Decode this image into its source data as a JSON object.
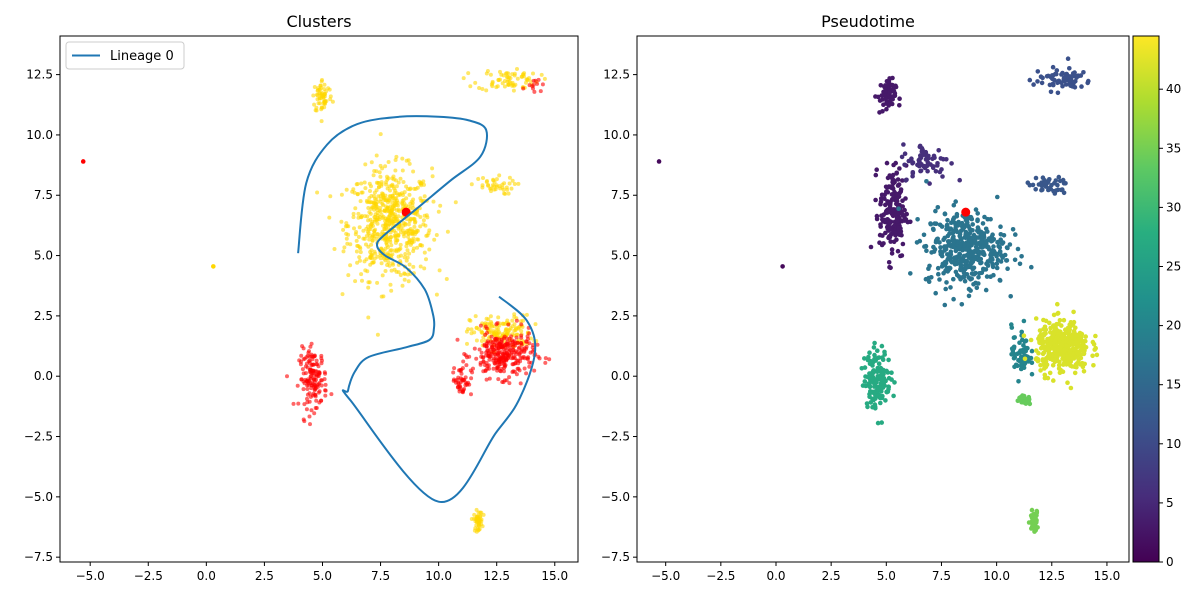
{
  "chart_data": [
    {
      "type": "scatter",
      "title": "Clusters",
      "xlabel": "",
      "ylabel": "",
      "xlim": [
        -6.3,
        16.0
      ],
      "ylim": [
        -7.7,
        14.1
      ],
      "xticks": [
        -5.0,
        -2.5,
        0.0,
        2.5,
        5.0,
        7.5,
        10.0,
        12.5,
        15.0
      ],
      "yticks": [
        -7.5,
        -5.0,
        -2.5,
        0.0,
        2.5,
        5.0,
        7.5,
        10.0,
        12.5
      ],
      "xtick_labels": [
        "−5.0",
        "−2.5",
        "0.0",
        "2.5",
        "5.0",
        "7.5",
        "10.0",
        "12.5",
        "15.0"
      ],
      "ytick_labels": [
        "−7.5",
        "−5.0",
        "−2.5",
        "0.0",
        "2.5",
        "5.0",
        "7.5",
        "10.0",
        "12.5"
      ],
      "legend": {
        "position": "top-left",
        "entries": [
          "Lineage 0"
        ]
      },
      "colors": {
        "cluster_a": "#FFD700",
        "cluster_b": "#FF0000",
        "lineage": "#1f77b4",
        "start_point": "#FF0000"
      },
      "clusters": [
        {
          "color_key": "cluster_a",
          "center": [
            7.9,
            6.3
          ],
          "spread": [
            1.5,
            1.9
          ],
          "n": 620
        },
        {
          "color_key": "cluster_a",
          "center": [
            5.0,
            11.6
          ],
          "spread": [
            0.35,
            0.6
          ],
          "n": 60
        },
        {
          "color_key": "cluster_a",
          "center": [
            13.0,
            12.3
          ],
          "spread": [
            1.1,
            0.4
          ],
          "n": 70
        },
        {
          "color_key": "cluster_a",
          "center": [
            12.3,
            7.9
          ],
          "spread": [
            0.8,
            0.3
          ],
          "n": 40
        },
        {
          "color_key": "cluster_a",
          "center": [
            12.7,
            1.8
          ],
          "spread": [
            1.1,
            0.6
          ],
          "n": 150
        },
        {
          "color_key": "cluster_a",
          "center": [
            11.7,
            -6.0
          ],
          "spread": [
            0.15,
            0.35
          ],
          "n": 45
        },
        {
          "color_key": "cluster_b",
          "center": [
            4.6,
            -0.1
          ],
          "spread": [
            0.5,
            1.0
          ],
          "n": 150
        },
        {
          "color_key": "cluster_b",
          "center": [
            12.8,
            0.9
          ],
          "spread": [
            1.1,
            0.8
          ],
          "n": 290
        },
        {
          "color_key": "cluster_b",
          "center": [
            11.0,
            -0.2
          ],
          "spread": [
            0.35,
            0.5
          ],
          "n": 45
        },
        {
          "color_key": "cluster_b",
          "center": [
            14.1,
            12.2
          ],
          "spread": [
            0.3,
            0.3
          ],
          "n": 12
        }
      ],
      "single_points": [
        {
          "x": -5.3,
          "y": 8.9,
          "color_key": "cluster_b"
        },
        {
          "x": 0.3,
          "y": 4.55,
          "color_key": "cluster_a"
        }
      ],
      "start_point": {
        "x": 8.6,
        "y": 6.8
      },
      "series": [
        {
          "name": "Lineage 0",
          "x": [
            3.95,
            4.3,
            5.2,
            6.5,
            8.3,
            10.0,
            11.3,
            12.05,
            11.8,
            10.5,
            9.0,
            7.6,
            7.35,
            7.7,
            8.6,
            9.4,
            9.75,
            9.8,
            9.6,
            8.6,
            7.0,
            6.4,
            6.1,
            6.2,
            10.0,
            12.5,
            13.5,
            14.15,
            13.8,
            12.6
          ],
          "y": [
            5.1,
            8.0,
            9.6,
            10.45,
            10.75,
            10.75,
            10.6,
            10.2,
            9.1,
            8.1,
            6.9,
            5.8,
            5.4,
            5.0,
            4.5,
            3.6,
            2.6,
            2.0,
            1.5,
            1.2,
            0.8,
            0.2,
            -0.6,
            -1.0,
            -5.2,
            -2.3,
            -0.9,
            1.0,
            2.3,
            3.3
          ]
        }
      ]
    },
    {
      "type": "scatter",
      "title": "Pseudotime",
      "xlabel": "",
      "ylabel": "",
      "xlim": [
        -6.3,
        16.0
      ],
      "ylim": [
        -7.7,
        14.1
      ],
      "xticks": [
        -5.0,
        -2.5,
        0.0,
        2.5,
        5.0,
        7.5,
        10.0,
        12.5,
        15.0
      ],
      "yticks": [
        -7.5,
        -5.0,
        -2.5,
        0.0,
        2.5,
        5.0,
        7.5,
        10.0,
        12.5
      ],
      "xtick_labels": [
        "−5.0",
        "−2.5",
        "0.0",
        "2.5",
        "5.0",
        "7.5",
        "10.0",
        "12.5",
        "15.0"
      ],
      "ytick_labels": [
        "−7.5",
        "−5.0",
        "−2.5",
        "0.0",
        "2.5",
        "5.0",
        "7.5",
        "10.0",
        "12.5"
      ],
      "colormap": "viridis",
      "colorbar": {
        "min": 0,
        "max": 44.5,
        "ticks": [
          0,
          5,
          10,
          15,
          20,
          25,
          30,
          35,
          40
        ],
        "tick_labels": [
          "0",
          "5",
          "10",
          "15",
          "20",
          "25",
          "30",
          "35",
          "40"
        ]
      },
      "colors": {
        "start_point": "#FF0000"
      },
      "clusters": [
        {
          "pseudotime": 3,
          "center": [
            5.0,
            11.6
          ],
          "spread": [
            0.35,
            0.6
          ],
          "n": 60
        },
        {
          "pseudotime": 3,
          "center": [
            5.3,
            6.8
          ],
          "spread": [
            0.5,
            1.6
          ],
          "n": 180
        },
        {
          "pseudotime": 6,
          "center": [
            6.8,
            8.9
          ],
          "spread": [
            0.9,
            0.6
          ],
          "n": 70
        },
        {
          "pseudotime": 17,
          "center": [
            8.6,
            5.3
          ],
          "spread": [
            1.5,
            1.3
          ],
          "n": 420
        },
        {
          "pseudotime": 11,
          "center": [
            13.0,
            12.3
          ],
          "spread": [
            1.1,
            0.4
          ],
          "n": 70
        },
        {
          "pseudotime": 12,
          "center": [
            12.3,
            7.9
          ],
          "spread": [
            0.8,
            0.3
          ],
          "n": 40
        },
        {
          "pseudotime": 20,
          "center": [
            11.1,
            1.0
          ],
          "spread": [
            0.35,
            0.9
          ],
          "n": 60
        },
        {
          "pseudotime": 34,
          "center": [
            11.2,
            -1.0
          ],
          "spread": [
            0.3,
            0.15
          ],
          "n": 25
        },
        {
          "pseudotime": 27,
          "center": [
            4.6,
            -0.1
          ],
          "spread": [
            0.5,
            1.0
          ],
          "n": 150
        },
        {
          "pseudotime": 42,
          "center": [
            13.0,
            1.2
          ],
          "spread": [
            1.0,
            0.9
          ],
          "n": 380
        },
        {
          "pseudotime": 35,
          "center": [
            11.7,
            -6.0
          ],
          "spread": [
            0.15,
            0.35
          ],
          "n": 45
        }
      ],
      "single_points": [
        {
          "x": -5.3,
          "y": 8.9,
          "pseudotime": 1
        },
        {
          "x": 0.3,
          "y": 4.55,
          "pseudotime": 1
        }
      ],
      "start_point": {
        "x": 8.6,
        "y": 6.8
      }
    }
  ]
}
